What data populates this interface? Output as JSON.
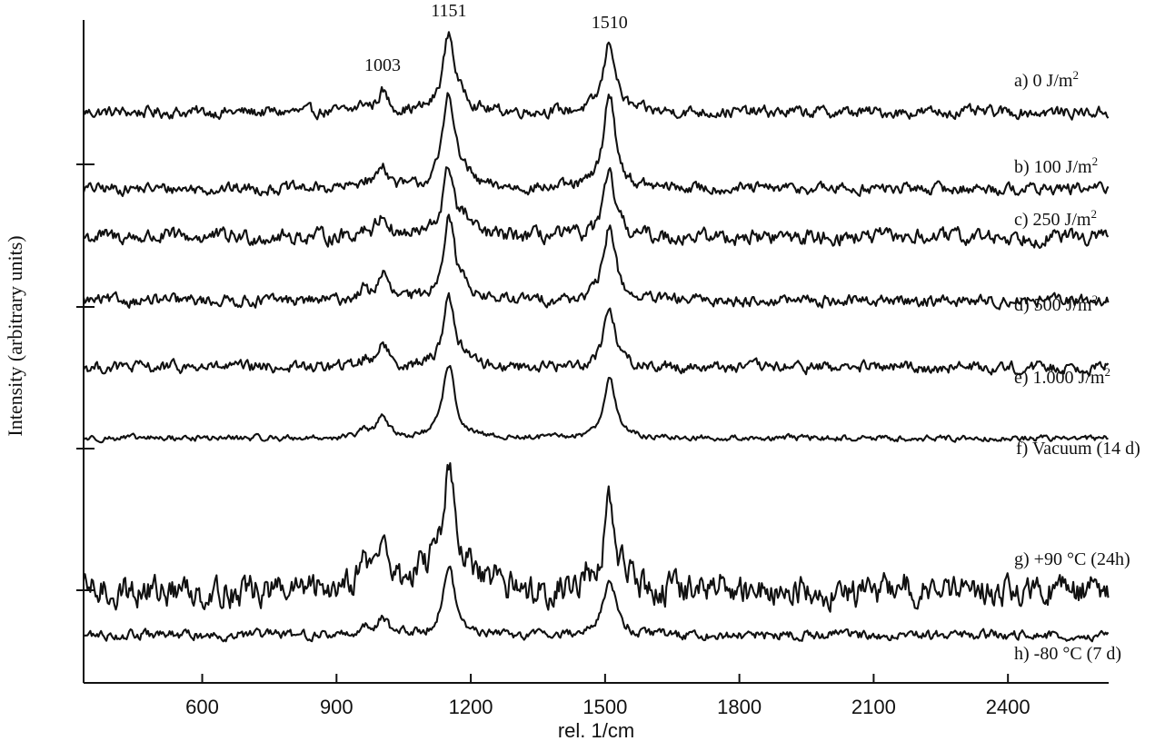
{
  "chart_data": {
    "type": "line",
    "title": "",
    "xlabel": "rel. 1/cm",
    "ylabel": "Intensity (arbitrary units)",
    "xlim": [
      335,
      2625
    ],
    "x_ticks": [
      600,
      900,
      1200,
      1500,
      1800,
      2100,
      2400
    ],
    "y_ticks": "unlabeled",
    "grid": false,
    "legend": "labels beside each trace on the right",
    "peak_annotations": [
      {
        "x": 1003,
        "label": "1003"
      },
      {
        "x": 1151,
        "label": "1151"
      },
      {
        "x": 1510,
        "label": "1510"
      }
    ],
    "series": [
      {
        "name": "a) 0 J/m²",
        "label_main": "a) 0 J/m",
        "label_sup": "2",
        "baseline": 1.35,
        "peaks": [
          [
            960,
            0.05
          ],
          [
            1003,
            0.14
          ],
          [
            1151,
            0.55
          ],
          [
            1190,
            0.06
          ],
          [
            1510,
            0.5
          ]
        ],
        "noise": 0.03
      },
      {
        "name": "b) 100 J/m²",
        "label_main": "b) 100 J/m",
        "label_sup": "2",
        "baseline": 0.81,
        "peaks": [
          [
            960,
            0.05
          ],
          [
            1003,
            0.17
          ],
          [
            1151,
            0.68
          ],
          [
            1190,
            0.07
          ],
          [
            1510,
            0.67
          ]
        ],
        "noise": 0.03
      },
      {
        "name": "c) 250 J/m²",
        "label_main": "c) 250 J/m",
        "label_sup": "2",
        "baseline": 0.47,
        "peaks": [
          [
            960,
            0.05
          ],
          [
            1003,
            0.16
          ],
          [
            1151,
            0.48
          ],
          [
            1190,
            0.09
          ],
          [
            1510,
            0.43
          ]
        ],
        "noise": 0.04
      },
      {
        "name": "d) 500 J/m²",
        "label_main": "d) 500 J/m",
        "label_sup": "2",
        "baseline": 0.02,
        "peaks": [
          [
            960,
            0.07
          ],
          [
            1003,
            0.19
          ],
          [
            1151,
            0.59
          ],
          [
            1190,
            0.08
          ],
          [
            1510,
            0.53
          ]
        ],
        "noise": 0.03
      },
      {
        "name": "e) 1.000 J/m²",
        "label_main": "e) 1.000 J/m",
        "label_sup": "2",
        "baseline": -0.45,
        "peaks": [
          [
            960,
            0.05
          ],
          [
            1003,
            0.18
          ],
          [
            1151,
            0.49
          ],
          [
            1190,
            0.06
          ],
          [
            1510,
            0.42
          ]
        ],
        "noise": 0.03
      },
      {
        "name": "f) Vacuum (14 d)",
        "label_main": "f) Vacuum (14 d)",
        "label_sup": "",
        "baseline": -0.95,
        "peaks": [
          [
            960,
            0.05
          ],
          [
            1003,
            0.17
          ],
          [
            1151,
            0.52
          ],
          [
            1510,
            0.43
          ]
        ],
        "noise": 0.015
      },
      {
        "name": "g) +90 °C (24h)",
        "label_main": "g) +90 °C (24h)",
        "label_sup": "",
        "baseline": -2.03,
        "peaks": [
          [
            920,
            0.08
          ],
          [
            960,
            0.18
          ],
          [
            1003,
            0.34
          ],
          [
            1080,
            0.12
          ],
          [
            1120,
            0.18
          ],
          [
            1151,
            0.82
          ],
          [
            1200,
            0.12
          ],
          [
            1260,
            0.08
          ],
          [
            1460,
            0.1
          ],
          [
            1510,
            0.6
          ],
          [
            1550,
            0.08
          ],
          [
            1770,
            0.08
          ],
          [
            2160,
            0.07
          ]
        ],
        "noise": 0.08
      },
      {
        "name": "h) -80 °C (7 d)",
        "label_main": "h) -80 °C (7 d)",
        "label_sup": "",
        "baseline": -2.34,
        "peaks": [
          [
            960,
            0.05
          ],
          [
            1003,
            0.14
          ],
          [
            1151,
            0.48
          ],
          [
            1510,
            0.42
          ]
        ],
        "noise": 0.025
      }
    ]
  }
}
